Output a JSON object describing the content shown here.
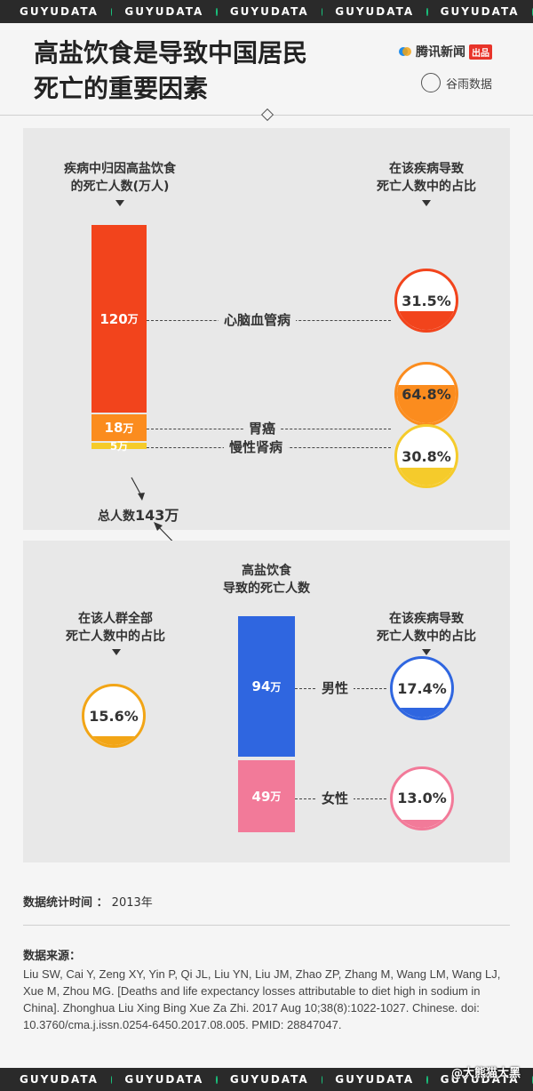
{
  "strip": {
    "brand": "GUYUDATA"
  },
  "header": {
    "title_line1": "高盐饮食是导致中国居民",
    "title_line2": "死亡的重要因素",
    "publisher": "腾讯新闻",
    "publisher_badge": "出品",
    "partner": "谷雨数据"
  },
  "panel1": {
    "left_head_l1": "疾病中归因高盐饮食",
    "left_head_l2": "的死亡人数(万人)",
    "right_head_l1": "在该疾病导致",
    "right_head_l2": "死亡人数中的占比",
    "total_label": "总人数",
    "total_value": "143万"
  },
  "panel2": {
    "center_head_l1": "高盐饮食",
    "center_head_l2": "导致的死亡人数",
    "left_head_l1": "在该人群全部",
    "left_head_l2": "死亡人数中的占比",
    "right_head_l1": "在该疾病导致",
    "right_head_l2": "死亡人数中的占比"
  },
  "colors": {
    "cardio": "#f2441c",
    "stomach": "#fb8c1e",
    "kidney": "#f5cb2b",
    "male": "#2f66e0",
    "female": "#f27a99",
    "overall": "#f2a516"
  },
  "chart_data": [
    {
      "type": "bar",
      "title": "疾病中归因高盐饮食的死亡人数(万人)",
      "stacked": true,
      "categories": [
        "心脑血管病",
        "胃癌",
        "慢性肾病"
      ],
      "values": [
        120,
        18,
        5
      ],
      "value_labels": [
        "120万",
        "18万",
        "5万"
      ],
      "share_labels": [
        "31.5%",
        "64.8%",
        "30.8%"
      ],
      "share_values": [
        31.5,
        64.8,
        30.8
      ],
      "total": 143
    },
    {
      "type": "bar",
      "title": "高盐饮食导致的死亡人数",
      "stacked": true,
      "categories": [
        "男性",
        "女性"
      ],
      "values": [
        94,
        49
      ],
      "value_labels": [
        "94万",
        "49万"
      ],
      "share_labels": [
        "17.4%",
        "13.0%"
      ],
      "share_values": [
        17.4,
        13.0
      ],
      "overall_share_label": "15.6%",
      "overall_share_value": 15.6
    }
  ],
  "footer": {
    "stat_time_label": "数据统计时间 ：",
    "stat_time_value": "2013年",
    "source_title": "数据来源：",
    "source_text": "Liu SW, Cai Y, Zeng XY, Yin P, Qi JL, Liu YN, Liu JM, Zhao ZP, Zhang M, Wang LM, Wang LJ, Xue M, Zhou MG. [Deaths and life expectancy losses attributable to diet high in sodium in China]. Zhonghua Liu Xing Bing Xue Za Zhi. 2017 Aug 10;38(8):1022-1027. Chinese. doi: 10.3760/cma.j.issn.0254-6450.2017.08.005. PMID: 28847047.",
    "watermark": "@大熊猫大黑"
  }
}
